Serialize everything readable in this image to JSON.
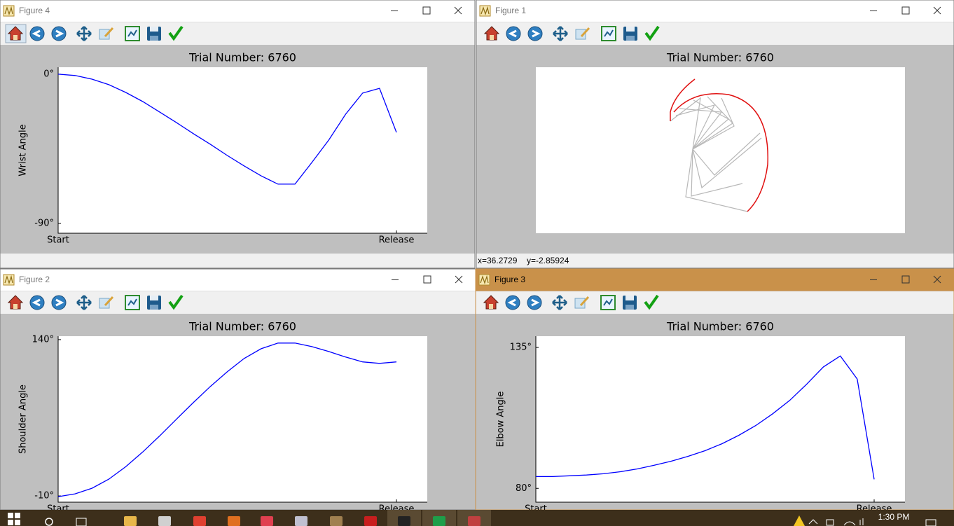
{
  "windows": [
    {
      "title": "Figure 4",
      "active": false,
      "chart_data": {
        "type": "line",
        "title": "Trial Number: 6760",
        "y_label": "Wrist Angle",
        "color": "#0000ff",
        "categories": [
          "Start",
          null,
          null,
          null,
          null,
          null,
          null,
          null,
          null,
          null,
          null,
          null,
          null,
          null,
          null,
          null,
          null,
          null,
          null,
          null,
          "Release"
        ],
        "values": [
          0,
          -0.8,
          -3.0,
          -6.3,
          -11.0,
          -16.5,
          -22.8,
          -29.2,
          -35.9,
          -42.3,
          -49.0,
          -55.3,
          -61.3,
          -66.3,
          -66.3,
          -53.2,
          -39.7,
          -24.1,
          -11.4,
          -8.5,
          -35.1
        ],
        "ylim": [
          -95.9,
          4.2
        ],
        "yticks": [
          {
            "value": 0,
            "label": "0°"
          },
          {
            "value": -90,
            "label": "-90°"
          }
        ]
      }
    },
    {
      "title": "Figure 1",
      "active": false,
      "status": [
        "x=36.2729",
        "y=-2.85924"
      ],
      "chart_data": {
        "type": "arm",
        "title": "Trial Number: 6760"
      }
    },
    {
      "title": "Figure 2",
      "active": false,
      "chart_data": {
        "type": "line",
        "title": "Trial Number: 6760",
        "y_label": "Shoulder Angle",
        "color": "#0000ff",
        "categories": [
          "Start",
          null,
          null,
          null,
          null,
          null,
          null,
          null,
          null,
          null,
          null,
          null,
          null,
          null,
          null,
          null,
          null,
          null,
          null,
          null,
          "Release"
        ],
        "values": [
          -10.7,
          -8.0,
          -2.6,
          6.1,
          18.1,
          32.2,
          47.6,
          63.7,
          79.7,
          95.1,
          109.2,
          121.9,
          131.3,
          136.7,
          136.7,
          133.3,
          128.6,
          123.3,
          118.6,
          117.2,
          118.6
        ],
        "ylim": [
          -16.0,
          143.3
        ],
        "yticks": [
          {
            "value": 140,
            "label": "140°"
          },
          {
            "value": -10,
            "label": "-10°"
          }
        ]
      }
    },
    {
      "title": "Figure 3",
      "active": true,
      "chart_data": {
        "type": "line",
        "title": "Trial Number: 6760",
        "y_label": "Elbow Angle",
        "color": "#0000ff",
        "categories": [
          "Start",
          null,
          null,
          null,
          null,
          null,
          null,
          null,
          null,
          null,
          null,
          null,
          null,
          null,
          null,
          null,
          null,
          null,
          null,
          null,
          "Release"
        ],
        "values": [
          84.6,
          84.6,
          84.9,
          85.2,
          85.7,
          86.5,
          87.6,
          89.0,
          90.6,
          92.5,
          94.7,
          97.4,
          100.7,
          104.5,
          109.1,
          114.3,
          120.6,
          127.4,
          131.7,
          122.7,
          83.5
        ],
        "ylim": [
          74.6,
          139.4
        ],
        "yticks": [
          {
            "value": 135,
            "label": "135°"
          },
          {
            "value": 80,
            "label": "80°"
          }
        ]
      }
    }
  ],
  "taskbar": {
    "clock": "1:30 PM"
  }
}
